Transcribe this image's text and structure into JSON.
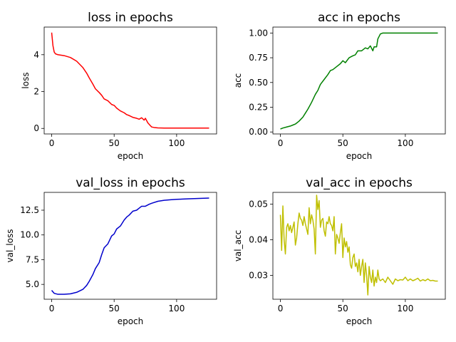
{
  "chart_data": [
    {
      "type": "line",
      "title": "loss in epochs",
      "xlabel": "epoch",
      "ylabel": "loss",
      "xlim": [
        -6,
        132
      ],
      "ylim": [
        -0.3,
        5.5
      ],
      "xticks": [
        "0",
        "50",
        "100"
      ],
      "xtick_values": [
        0,
        50,
        100
      ],
      "yticks": [
        "0",
        "2",
        "4"
      ],
      "ytick_values": [
        0,
        2,
        4
      ],
      "color": "#ff0000",
      "grid": false,
      "series": [
        {
          "x": [
            0,
            1,
            2,
            3,
            5,
            10,
            15,
            20,
            25,
            28,
            30,
            33,
            35,
            38,
            40,
            42,
            45,
            48,
            50,
            52,
            55,
            58,
            60,
            62,
            65,
            68,
            70,
            72,
            74,
            75,
            77,
            79,
            80,
            82,
            85,
            90,
            100,
            110,
            120,
            126
          ],
          "y": [
            5.2,
            4.5,
            4.15,
            4.05,
            4.0,
            3.95,
            3.85,
            3.65,
            3.3,
            3.0,
            2.75,
            2.4,
            2.15,
            1.95,
            1.8,
            1.6,
            1.5,
            1.3,
            1.25,
            1.1,
            0.95,
            0.85,
            0.75,
            0.7,
            0.6,
            0.55,
            0.5,
            0.58,
            0.45,
            0.55,
            0.3,
            0.15,
            0.08,
            0.05,
            0.03,
            0.02,
            0.02,
            0.02,
            0.02,
            0.02
          ]
        }
      ]
    },
    {
      "type": "line",
      "title": "acc in epochs",
      "xlabel": "epoch",
      "ylabel": "acc",
      "xlim": [
        -6,
        132
      ],
      "ylim": [
        -0.02,
        1.06
      ],
      "xticks": [
        "0",
        "50",
        "100"
      ],
      "xtick_values": [
        0,
        50,
        100
      ],
      "yticks": [
        "0.00",
        "0.25",
        "0.50",
        "0.75",
        "1.00"
      ],
      "ytick_values": [
        0,
        0.25,
        0.5,
        0.75,
        1.0
      ],
      "color": "#008000",
      "grid": false,
      "series": [
        {
          "x": [
            0,
            2,
            5,
            8,
            10,
            12,
            15,
            18,
            20,
            22,
            25,
            28,
            30,
            32,
            35,
            38,
            40,
            42,
            45,
            48,
            50,
            52,
            55,
            58,
            60,
            62,
            65,
            68,
            70,
            72,
            74,
            75,
            77,
            78,
            80,
            82,
            85,
            90,
            100,
            110,
            120,
            126
          ],
          "y": [
            0.03,
            0.04,
            0.05,
            0.06,
            0.07,
            0.08,
            0.11,
            0.15,
            0.19,
            0.23,
            0.3,
            0.38,
            0.42,
            0.48,
            0.53,
            0.58,
            0.62,
            0.63,
            0.66,
            0.69,
            0.72,
            0.7,
            0.75,
            0.77,
            0.78,
            0.82,
            0.82,
            0.85,
            0.84,
            0.87,
            0.82,
            0.86,
            0.86,
            0.94,
            0.99,
            1.0,
            1.0,
            1.0,
            1.0,
            1.0,
            1.0,
            1.0
          ]
        }
      ]
    },
    {
      "type": "line",
      "title": "val_loss in epochs",
      "xlabel": "epoch",
      "ylabel": "val_loss",
      "xlim": [
        -6,
        132
      ],
      "ylim": [
        3.5,
        14.3
      ],
      "xticks": [
        "0",
        "50",
        "100"
      ],
      "xtick_values": [
        0,
        50,
        100
      ],
      "yticks": [
        "5.0",
        "7.5",
        "10.0",
        "12.5"
      ],
      "ytick_values": [
        5.0,
        7.5,
        10.0,
        12.5
      ],
      "color": "#0000cc",
      "grid": false,
      "series": [
        {
          "x": [
            0,
            2,
            5,
            10,
            15,
            20,
            25,
            28,
            30,
            33,
            35,
            38,
            40,
            42,
            45,
            48,
            50,
            52,
            55,
            58,
            60,
            62,
            65,
            68,
            70,
            72,
            75,
            78,
            80,
            85,
            90,
            95,
            100,
            110,
            120,
            126
          ],
          "y": [
            4.4,
            4.1,
            4.0,
            4.0,
            4.05,
            4.2,
            4.5,
            4.9,
            5.3,
            6.0,
            6.6,
            7.2,
            8.0,
            8.7,
            9.1,
            9.9,
            10.1,
            10.6,
            10.9,
            11.5,
            11.8,
            12.0,
            12.4,
            12.5,
            12.7,
            12.9,
            12.9,
            13.1,
            13.2,
            13.4,
            13.5,
            13.55,
            13.6,
            13.65,
            13.7,
            13.72
          ]
        }
      ]
    },
    {
      "type": "line",
      "title": "val_acc in epochs",
      "xlabel": "epoch",
      "ylabel": "val_acc",
      "xlim": [
        -6,
        132
      ],
      "ylim": [
        0.0233,
        0.0533
      ],
      "xticks": [
        "0",
        "50",
        "100"
      ],
      "xtick_values": [
        0,
        50,
        100
      ],
      "yticks": [
        "0.03",
        "0.04",
        "0.05"
      ],
      "ytick_values": [
        0.03,
        0.04,
        0.05
      ],
      "color": "#bfbf00",
      "grid": false,
      "series": [
        {
          "x": [
            0,
            1,
            2,
            3,
            4,
            5,
            6,
            7,
            8,
            9,
            10,
            11,
            12,
            13,
            14,
            15,
            16,
            17,
            18,
            19,
            20,
            21,
            22,
            23,
            24,
            25,
            26,
            27,
            28,
            29,
            30,
            31,
            32,
            33,
            34,
            35,
            36,
            37,
            38,
            39,
            40,
            41,
            42,
            43,
            44,
            45,
            46,
            47,
            48,
            49,
            50,
            51,
            52,
            53,
            54,
            55,
            56,
            57,
            58,
            59,
            60,
            61,
            62,
            63,
            64,
            65,
            66,
            67,
            68,
            69,
            70,
            71,
            72,
            73,
            74,
            75,
            76,
            77,
            78,
            79,
            80,
            82,
            84,
            86,
            88,
            90,
            92,
            94,
            96,
            98,
            100,
            102,
            104,
            106,
            108,
            110,
            112,
            114,
            116,
            118,
            120,
            122,
            124,
            126
          ],
          "y": [
            0.047,
            0.037,
            0.0495,
            0.04,
            0.036,
            0.0435,
            0.0445,
            0.0425,
            0.044,
            0.042,
            0.0435,
            0.045,
            0.0385,
            0.0405,
            0.0445,
            0.0475,
            0.046,
            0.0455,
            0.044,
            0.0465,
            0.0445,
            0.043,
            0.0415,
            0.049,
            0.0445,
            0.047,
            0.0455,
            0.043,
            0.036,
            0.0525,
            0.0485,
            0.051,
            0.0435,
            0.0455,
            0.046,
            0.0425,
            0.041,
            0.045,
            0.0445,
            0.0465,
            0.0445,
            0.044,
            0.0425,
            0.0465,
            0.036,
            0.0415,
            0.0405,
            0.039,
            0.042,
            0.0445,
            0.035,
            0.0405,
            0.038,
            0.0395,
            0.0365,
            0.038,
            0.033,
            0.032,
            0.035,
            0.036,
            0.0325,
            0.0335,
            0.031,
            0.0345,
            0.03,
            0.0325,
            0.0345,
            0.028,
            0.0335,
            0.03,
            0.0245,
            0.0325,
            0.0295,
            0.028,
            0.0315,
            0.027,
            0.0295,
            0.028,
            0.0315,
            0.029,
            0.0285,
            0.029,
            0.028,
            0.0295,
            0.0285,
            0.0275,
            0.029,
            0.0285,
            0.0288,
            0.0287,
            0.0295,
            0.0285,
            0.029,
            0.0285,
            0.0288,
            0.0292,
            0.0284,
            0.0288,
            0.0285,
            0.029,
            0.0285,
            0.0286,
            0.0284,
            0.0284
          ]
        }
      ]
    }
  ]
}
